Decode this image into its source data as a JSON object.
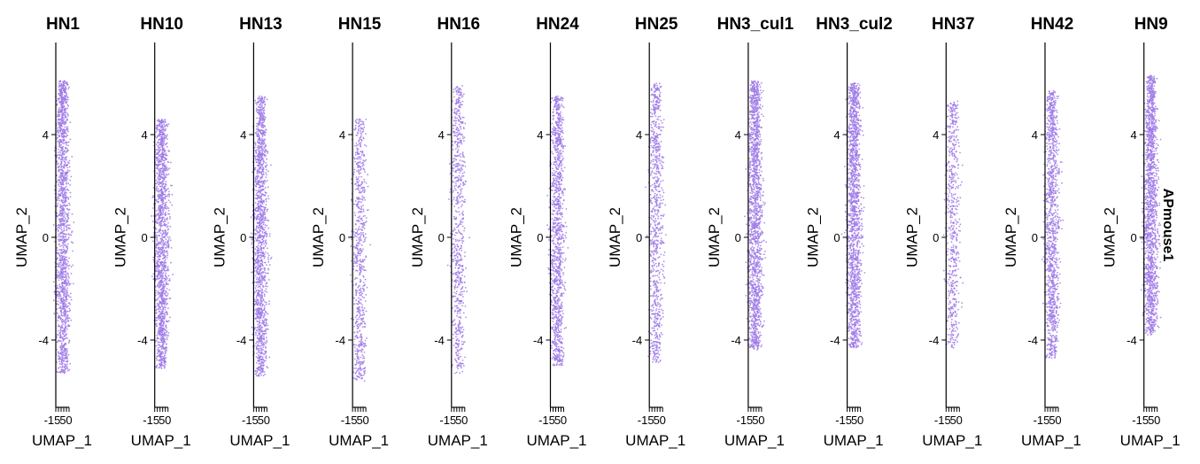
{
  "chart_data": {
    "type": "scatter",
    "xlabel": "UMAP_1",
    "ylabel": "UMAP_2",
    "y_ticks": [
      -4,
      0,
      4
    ],
    "x_tick_labels": [
      "-15",
      "5",
      "0"
    ],
    "ylim": [
      -6.7,
      7.5
    ],
    "point_color": "#9f7ae8",
    "strip_label": "APmouse1",
    "panels": [
      {
        "name": "HN1",
        "y_top": 6.1,
        "y_bottom": -5.3,
        "n": 1600
      },
      {
        "name": "HN10",
        "y_top": 4.6,
        "y_bottom": -5.1,
        "n": 1500
      },
      {
        "name": "HN13",
        "y_top": 5.5,
        "y_bottom": -5.4,
        "n": 1500
      },
      {
        "name": "HN15",
        "y_top": 4.6,
        "y_bottom": -5.6,
        "n": 700
      },
      {
        "name": "HN16",
        "y_top": 5.9,
        "y_bottom": -5.3,
        "n": 700
      },
      {
        "name": "HN24",
        "y_top": 5.5,
        "y_bottom": -5.0,
        "n": 1200
      },
      {
        "name": "HN25",
        "y_top": 6.0,
        "y_bottom": -4.9,
        "n": 800
      },
      {
        "name": "HN3_cul1",
        "y_top": 6.1,
        "y_bottom": -4.4,
        "n": 1600
      },
      {
        "name": "HN3_cul2",
        "y_top": 6.0,
        "y_bottom": -4.3,
        "n": 1600
      },
      {
        "name": "HN37",
        "y_top": 5.3,
        "y_bottom": -4.3,
        "n": 600
      },
      {
        "name": "HN42",
        "y_top": 5.7,
        "y_bottom": -4.7,
        "n": 1200
      },
      {
        "name": "HN9",
        "y_top": 6.3,
        "y_bottom": -3.8,
        "n": 1600
      }
    ]
  }
}
